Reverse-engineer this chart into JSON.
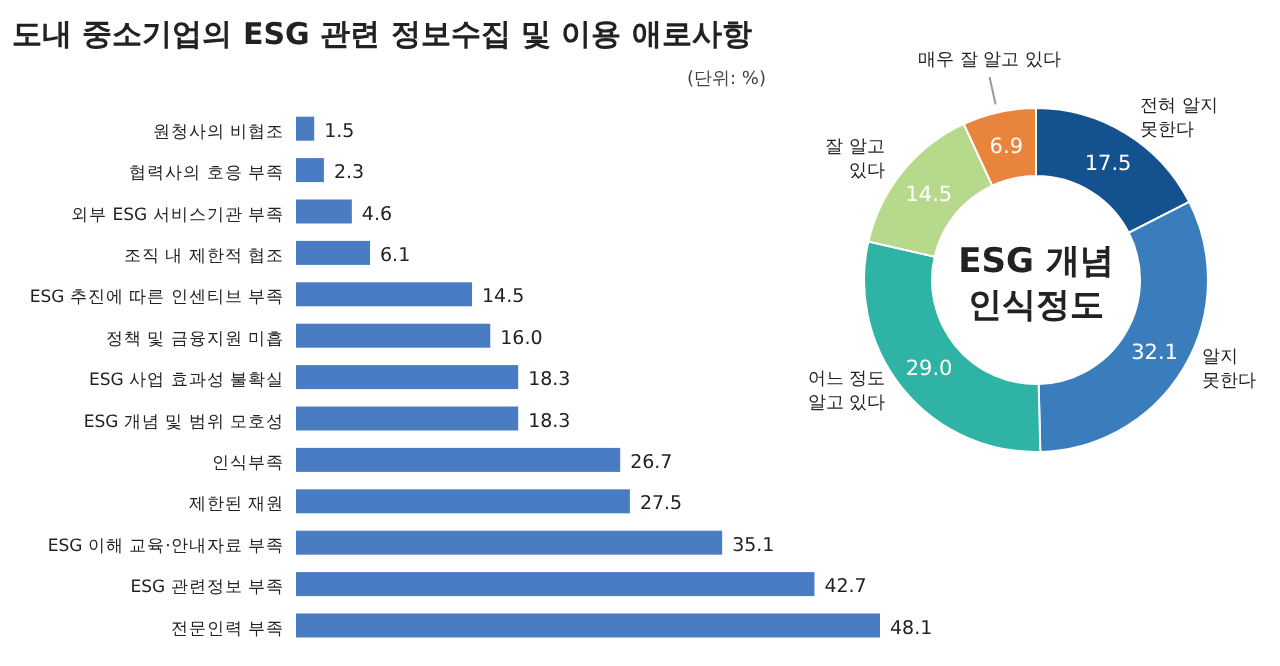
{
  "chart_data": [
    {
      "type": "bar",
      "orientation": "horizontal",
      "title": "도내 중소기업의 ESG 관련 정보수집 및 이용 애로사항",
      "subtitle": "(단위: %)",
      "data_labels": true,
      "color": "#4a7cc4",
      "categories": [
        "원청사의 비협조",
        "협력사의 호응 부족",
        "외부 ESG 서비스기관 부족",
        "조직 내 제한적 협조",
        "ESG 추진에 따른 인센티브 부족",
        "정책 및 금융지원 미흡",
        "ESG 사업 효과성 불확실",
        "ESG 개념 및 범위 모호성",
        "인식부족",
        "제한된 재원",
        "ESG 이해 교육·안내자료 부족",
        "ESG 관련정보 부족",
        "전문인력 부족"
      ],
      "values": [
        1.5,
        2.3,
        4.6,
        6.1,
        14.5,
        16.0,
        18.3,
        18.3,
        26.7,
        27.5,
        35.1,
        42.7,
        48.1
      ],
      "value_labels": [
        "1.5",
        "2.3",
        "4.6",
        "6.1",
        "14.5",
        "16.0",
        "18.3",
        "18.3",
        "26.7",
        "27.5",
        "35.1",
        "42.7",
        "48.1"
      ]
    },
    {
      "type": "donut",
      "title": "ESG 개념\n인식정도",
      "data_labels": true,
      "categories": [
        "전혀 알지\n못한다",
        "알지\n못한다",
        "어느 정도\n알고 있다",
        "잘 알고\n있다",
        "매우 잘 알고 있다"
      ],
      "values": [
        17.5,
        32.1,
        29.0,
        14.5,
        6.9
      ],
      "value_labels": [
        "17.5",
        "32.1",
        "29.0",
        "14.5",
        "6.9"
      ],
      "colors": [
        "#14528f",
        "#3a7dbd",
        "#2fb3a5",
        "#b7d98c",
        "#e8843c"
      ]
    }
  ]
}
